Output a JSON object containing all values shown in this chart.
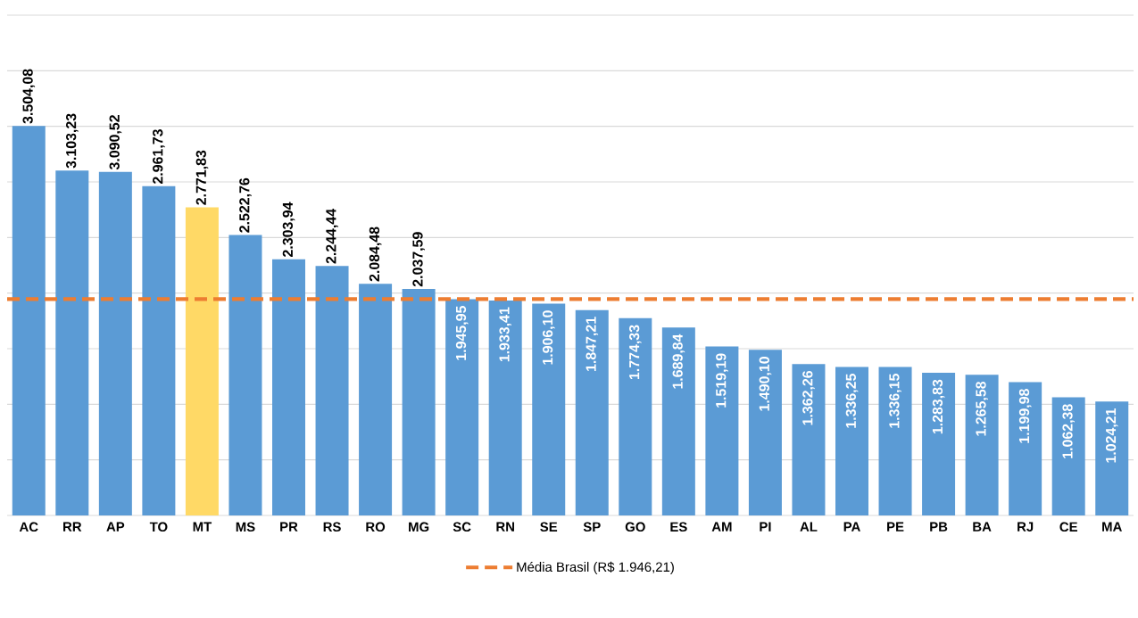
{
  "chart_data": {
    "type": "bar",
    "categories": [
      "AC",
      "RR",
      "AP",
      "TO",
      "MT",
      "MS",
      "PR",
      "RS",
      "RO",
      "MG",
      "SC",
      "RN",
      "SE",
      "SP",
      "GO",
      "ES",
      "AM",
      "PI",
      "AL",
      "PA",
      "PE",
      "PB",
      "BA",
      "RJ",
      "CE",
      "MA"
    ],
    "values": [
      3504.08,
      3103.23,
      3090.52,
      2961.73,
      2771.83,
      2522.76,
      2303.94,
      2244.44,
      2084.48,
      2037.59,
      1945.95,
      1933.41,
      1906.1,
      1847.21,
      1774.33,
      1689.84,
      1519.19,
      1490.1,
      1362.26,
      1336.25,
      1336.15,
      1283.83,
      1265.58,
      1199.98,
      1062.38,
      1024.21
    ],
    "value_labels": [
      "3.504,08",
      "3.103,23",
      "3.090,52",
      "2.961,73",
      "2.771,83",
      "2.522,76",
      "2.303,94",
      "2.244,44",
      "2.084,48",
      "2.037,59",
      "1.945,95",
      "1.933,41",
      "1.906,10",
      "1.847,21",
      "1.774,33",
      "1.689,84",
      "1.519,19",
      "1.490,10",
      "1.362,26",
      "1.336,25",
      "1.336,15",
      "1.283,83",
      "1.265,58",
      "1.199,98",
      "1.062,38",
      "1.024,21"
    ],
    "colors": [
      "#5b9bd5",
      "#5b9bd5",
      "#5b9bd5",
      "#5b9bd5",
      "#ffd966",
      "#5b9bd5",
      "#5b9bd5",
      "#5b9bd5",
      "#5b9bd5",
      "#5b9bd5",
      "#5b9bd5",
      "#5b9bd5",
      "#5b9bd5",
      "#5b9bd5",
      "#5b9bd5",
      "#5b9bd5",
      "#5b9bd5",
      "#5b9bd5",
      "#5b9bd5",
      "#5b9bd5",
      "#5b9bd5",
      "#5b9bd5",
      "#5b9bd5",
      "#5b9bd5",
      "#5b9bd5",
      "#5b9bd5"
    ],
    "ylim": [
      0,
      4500
    ],
    "yticks": [
      {
        "value": 0,
        "label": null
      },
      {
        "value": 500,
        "label": null
      },
      {
        "value": 1000,
        "label": null
      },
      {
        "value": 1500,
        "label": null
      },
      {
        "value": 2000,
        "label": null
      },
      {
        "value": 2500,
        "label": null
      },
      {
        "value": 3000,
        "label": null
      },
      {
        "value": 3500,
        "label": null
      },
      {
        "value": 4000,
        "label": null
      },
      {
        "value": 4500,
        "label": null
      }
    ],
    "tick_labels": "x",
    "grid": "y",
    "ref_lines": [
      {
        "axis": "y",
        "value": 1946.21,
        "label": "Média Brasil (R$ 1.946,21)",
        "color": "#ed7d31",
        "line_style": "dashed"
      }
    ],
    "legend": "bottom"
  }
}
